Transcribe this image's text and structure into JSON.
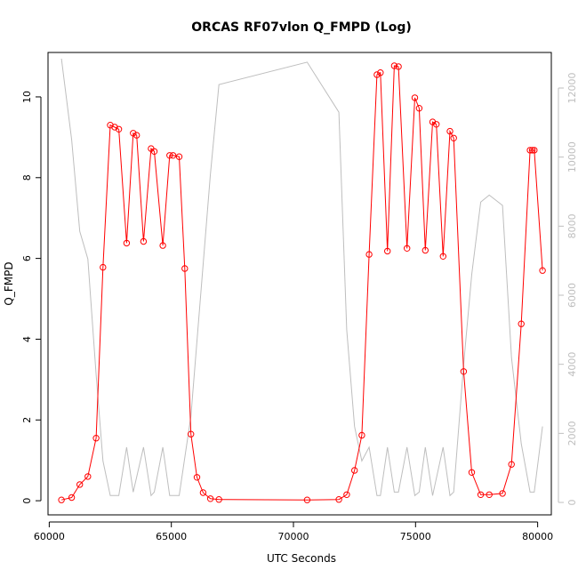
{
  "chart_data": {
    "type": "line",
    "title": "ORCAS RF07vlon Q_FMPD (Log)",
    "xlabel": "UTC Seconds",
    "ylabel": "Q_FMPD",
    "xlim": [
      59950,
      80560
    ],
    "ylim": [
      -0.35,
      11.1
    ],
    "y2lim": [
      -360,
      13030
    ],
    "x_ticks": [
      60000,
      65000,
      70000,
      75000,
      80000
    ],
    "y_ticks": [
      0,
      2,
      4,
      6,
      8,
      10
    ],
    "y2_ticks": [
      0,
      2000,
      4000,
      6000,
      8000,
      10000,
      12000
    ],
    "grid": false,
    "series": [
      {
        "color": "#ff0000",
        "marker": "open-circle",
        "x": [
          60500,
          60920,
          61250,
          61580,
          61920,
          62200,
          62500,
          62680,
          62850,
          63170,
          63440,
          63580,
          63860,
          64170,
          64300,
          64650,
          64930,
          65070,
          65320,
          65550,
          65800,
          66050,
          66300,
          66600,
          66950,
          70560,
          71860,
          72180,
          72500,
          72800,
          73100,
          73420,
          73560,
          73850,
          74130,
          74300,
          74650,
          74970,
          75150,
          75400,
          75700,
          75850,
          76130,
          76410,
          76560,
          76970,
          77300,
          77670,
          78020,
          78560,
          78930,
          79330,
          79690,
          79780,
          79860,
          80200
        ],
        "y": [
          0.02,
          0.08,
          0.4,
          0.6,
          1.55,
          5.78,
          9.3,
          9.25,
          9.2,
          6.38,
          9.1,
          9.05,
          6.42,
          8.72,
          8.65,
          6.32,
          8.55,
          8.55,
          8.52,
          5.75,
          1.65,
          0.58,
          0.2,
          0.05,
          0.03,
          0.02,
          0.03,
          0.15,
          0.75,
          1.62,
          6.1,
          10.55,
          10.6,
          6.18,
          10.77,
          10.75,
          6.25,
          9.98,
          9.72,
          6.2,
          9.38,
          9.32,
          6.05,
          9.15,
          8.98,
          3.2,
          0.7,
          0.15,
          0.15,
          0.18,
          0.9,
          4.38,
          8.68,
          8.68,
          8.68,
          5.7
        ]
      },
      {
        "color": "#bebebe",
        "axis": "right",
        "x": [
          60500,
          60920,
          61250,
          61580,
          61920,
          62200,
          62500,
          62850,
          63170,
          63440,
          63860,
          64170,
          64300,
          64650,
          64930,
          65320,
          65800,
          66600,
          66950,
          70560,
          71860,
          72180,
          72500,
          72800,
          73100,
          73420,
          73560,
          73850,
          74130,
          74300,
          74650,
          74970,
          75150,
          75400,
          75700,
          76130,
          76410,
          76560,
          76970,
          77300,
          77670,
          78020,
          78560,
          78930,
          79330,
          79690,
          79860,
          80200
        ],
        "y": [
          12850,
          10500,
          7850,
          7050,
          3700,
          1200,
          200,
          200,
          1600,
          300,
          1600,
          200,
          300,
          1600,
          200,
          200,
          2500,
          9500,
          12100,
          12750,
          11300,
          5000,
          2200,
          1200,
          1600,
          200,
          200,
          1600,
          300,
          300,
          1600,
          200,
          300,
          1600,
          200,
          1600,
          200,
          300,
          4000,
          6600,
          8700,
          8900,
          8600,
          4200,
          1700,
          300,
          300,
          2200
        ]
      }
    ]
  }
}
